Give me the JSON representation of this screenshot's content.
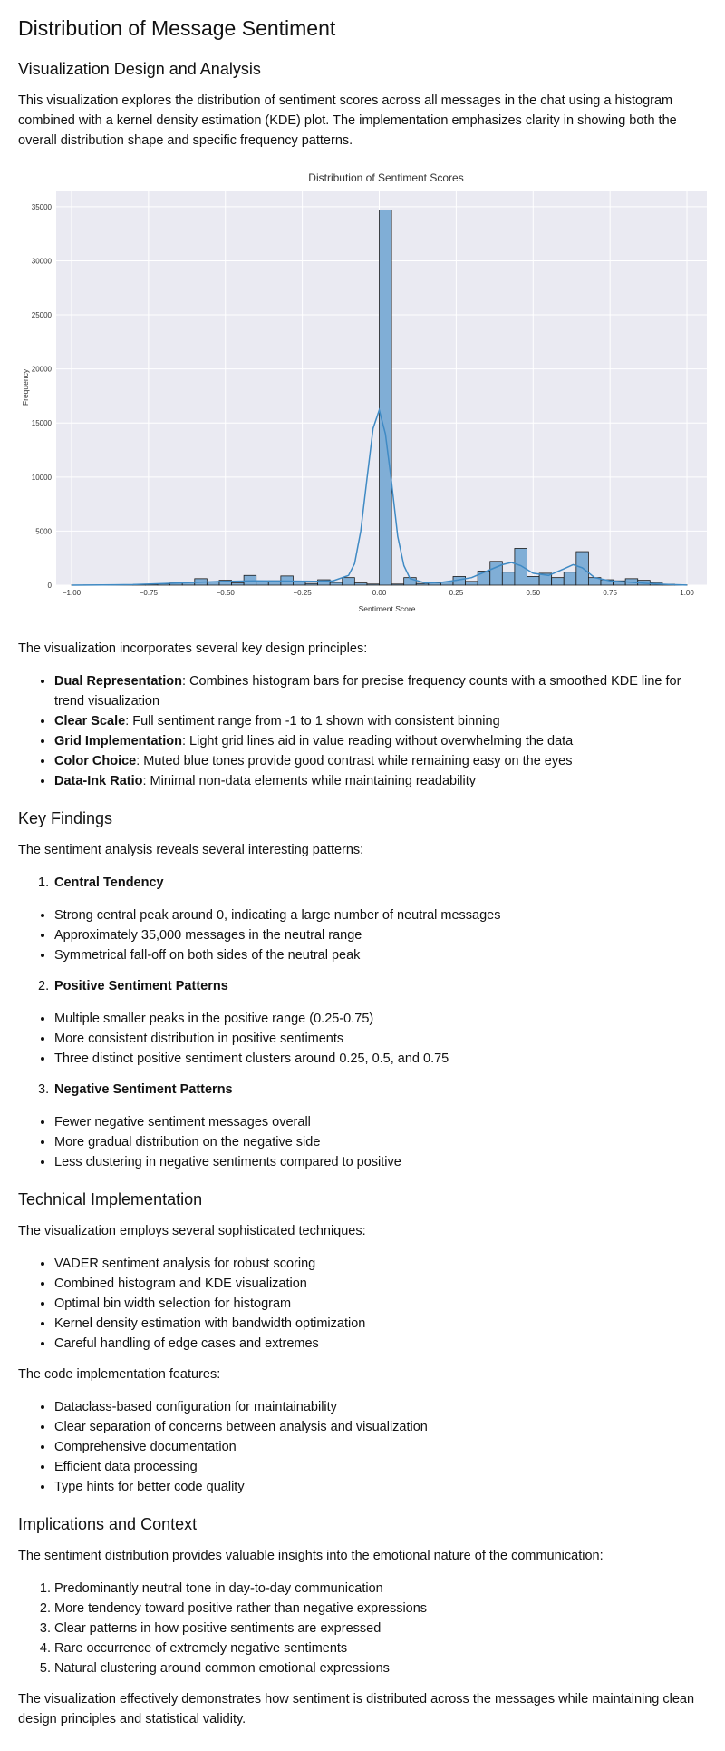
{
  "title": "Distribution of Message Sentiment",
  "section1": {
    "heading": "Visualization Design and Analysis",
    "intro": "This visualization explores the distribution of sentiment scores across all messages in the chat using a histogram combined with a kernel density estimation (KDE) plot. The implementation emphasizes clarity in showing both the overall distribution shape and specific frequency patterns."
  },
  "chart_data": {
    "type": "bar",
    "title": "Distribution of Sentiment Scores",
    "xlabel": "Sentiment Score",
    "ylabel": "Frequency",
    "xlim": [
      -1.05,
      1.1
    ],
    "ylim": [
      0,
      36500
    ],
    "xticks": [
      -1.0,
      -0.75,
      -0.5,
      -0.25,
      0.0,
      0.25,
      0.5,
      0.75,
      1.0
    ],
    "xtick_labels": [
      "−1.00",
      "−0.75",
      "−0.50",
      "−0.25",
      "0.00",
      "0.25",
      "0.50",
      "0.75",
      "1.00"
    ],
    "yticks": [
      0,
      5000,
      10000,
      15000,
      20000,
      25000,
      30000,
      35000
    ],
    "ytick_labels": [
      "0",
      "5000",
      "10000",
      "15000",
      "20000",
      "25000",
      "30000",
      "35000"
    ],
    "grid": true,
    "bin_width": 0.04,
    "bin_starts": [
      -1.0,
      -0.96,
      -0.92,
      -0.88,
      -0.84,
      -0.8,
      -0.76,
      -0.72,
      -0.68,
      -0.64,
      -0.6,
      -0.56,
      -0.52,
      -0.48,
      -0.44,
      -0.4,
      -0.36,
      -0.32,
      -0.28,
      -0.24,
      -0.2,
      -0.16,
      -0.12,
      -0.08,
      -0.04,
      0.0,
      0.04,
      0.08,
      0.12,
      0.16,
      0.2,
      0.24,
      0.28,
      0.32,
      0.36,
      0.4,
      0.44,
      0.48,
      0.52,
      0.56,
      0.6,
      0.64,
      0.68,
      0.72,
      0.76,
      0.8,
      0.84,
      0.88,
      0.92,
      0.96
    ],
    "values": [
      10,
      15,
      20,
      25,
      40,
      60,
      80,
      120,
      200,
      300,
      600,
      300,
      450,
      200,
      900,
      350,
      400,
      850,
      300,
      150,
      500,
      250,
      700,
      200,
      100,
      34700,
      100,
      700,
      150,
      200,
      300,
      800,
      350,
      1300,
      2200,
      1200,
      3400,
      800,
      1100,
      700,
      1200,
      3100,
      700,
      500,
      400,
      600,
      450,
      250,
      80,
      20
    ],
    "kde": {
      "x": [
        -1.0,
        -0.9,
        -0.8,
        -0.7,
        -0.6,
        -0.5,
        -0.4,
        -0.3,
        -0.2,
        -0.15,
        -0.1,
        -0.08,
        -0.06,
        -0.04,
        -0.02,
        0.0,
        0.02,
        0.04,
        0.06,
        0.08,
        0.1,
        0.15,
        0.2,
        0.25,
        0.3,
        0.35,
        0.4,
        0.43,
        0.46,
        0.5,
        0.55,
        0.6,
        0.63,
        0.66,
        0.7,
        0.75,
        0.8,
        0.85,
        0.9,
        0.95,
        1.0
      ],
      "y": [
        0,
        20,
        50,
        150,
        250,
        350,
        400,
        380,
        350,
        400,
        900,
        2000,
        5000,
        9800,
        14500,
        16200,
        14000,
        9500,
        4500,
        1800,
        600,
        200,
        250,
        450,
        700,
        1300,
        1900,
        2100,
        1800,
        1100,
        900,
        1500,
        1900,
        1600,
        700,
        400,
        300,
        200,
        100,
        50,
        10
      ]
    },
    "colors": {
      "bar": "#80aed6",
      "bar_edge": "#1a1a1a",
      "kde": "#3f8ac4",
      "plot_bg": "#eaeaf2",
      "grid": "#ffffff"
    }
  },
  "section1_after": {
    "lead": "The visualization incorporates several key design principles:",
    "principles": [
      {
        "term": "Dual Representation",
        "desc": ": Combines histogram bars for precise frequency counts with a smoothed KDE line for trend visualization"
      },
      {
        "term": "Clear Scale",
        "desc": ": Full sentiment range from -1 to 1 shown with consistent binning"
      },
      {
        "term": "Grid Implementation",
        "desc": ": Light grid lines aid in value reading without overwhelming the data"
      },
      {
        "term": "Color Choice",
        "desc": ": Muted blue tones provide good contrast while remaining easy on the eyes"
      },
      {
        "term": "Data-Ink Ratio",
        "desc": ": Minimal non-data elements while maintaining readability"
      }
    ]
  },
  "findings": {
    "heading": "Key Findings",
    "lead": "The sentiment analysis reveals several interesting patterns:",
    "groups": [
      {
        "num": "1.",
        "title": "Central Tendency",
        "items": [
          "Strong central peak around 0, indicating a large number of neutral messages",
          "Approximately 35,000 messages in the neutral range",
          "Symmetrical fall-off on both sides of the neutral peak"
        ]
      },
      {
        "num": "2.",
        "title": "Positive Sentiment Patterns",
        "items": [
          "Multiple smaller peaks in the positive range (0.25-0.75)",
          "More consistent distribution in positive sentiments",
          "Three distinct positive sentiment clusters around 0.25, 0.5, and 0.75"
        ]
      },
      {
        "num": "3.",
        "title": "Negative Sentiment Patterns",
        "items": [
          "Fewer negative sentiment messages overall",
          "More gradual distribution on the negative side",
          "Less clustering in negative sentiments compared to positive"
        ]
      }
    ]
  },
  "technical": {
    "heading": "Technical Implementation",
    "lead": "The visualization employs several sophisticated techniques:",
    "techniques": [
      "VADER sentiment analysis for robust scoring",
      "Combined histogram and KDE visualization",
      "Optimal bin width selection for histogram",
      "Kernel density estimation with bandwidth optimization",
      "Careful handling of edge cases and extremes"
    ],
    "lead2": "The code implementation features:",
    "features": [
      "Dataclass-based configuration for maintainability",
      "Clear separation of concerns between analysis and visualization",
      "Comprehensive documentation",
      "Efficient data processing",
      "Type hints for better code quality"
    ]
  },
  "implications": {
    "heading": "Implications and Context",
    "lead": "The sentiment distribution provides valuable insights into the emotional nature of the communication:",
    "items": [
      "Predominantly neutral tone in day-to-day communication",
      "More tendency toward positive rather than negative expressions",
      "Clear patterns in how positive sentiments are expressed",
      "Rare occurrence of extremely negative sentiments",
      "Natural clustering around common emotional expressions"
    ],
    "closing": "The visualization effectively demonstrates how sentiment is distributed across the messages while maintaining clean design principles and statistical validity."
  }
}
